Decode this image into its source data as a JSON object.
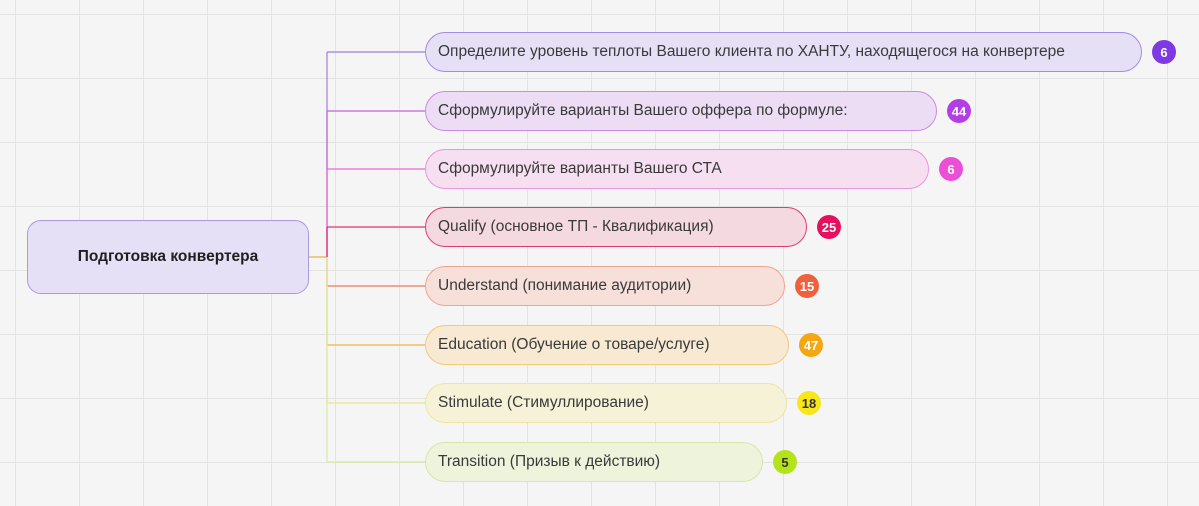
{
  "root": {
    "label": "Подготовка конвертера",
    "connector_color": "#e8b23a"
  },
  "branches": [
    {
      "label": "Определите уровень теплоты Вашего клиента по ХАНТУ, находящегося на конвертере",
      "count": "6",
      "line_color": "#9c7fe0",
      "fill": "#e6e0f6",
      "border": "#a48ae2",
      "badge_color": "#7e39e3",
      "badge_text_color": "#ffffff"
    },
    {
      "label": "Сформулируйте варианты Вашего оффера по формуле:",
      "count": "44",
      "line_color": "#c35fe0",
      "fill": "#ecdcf4",
      "border": "#c98ae3",
      "badge_color": "#b43ee6",
      "badge_text_color": "#ffffff"
    },
    {
      "label": "Сформулируйте варианты Вашего СТА",
      "count": "6",
      "line_color": "#e86bd6",
      "fill": "#f5dff0",
      "border": "#ea95dc",
      "badge_color": "#ea4fd6",
      "badge_text_color": "#ffffff"
    },
    {
      "label": "Qualify (основное ТП - Квалификация)",
      "count": "25",
      "line_color": "#e5306a",
      "fill": "#f5d9e0",
      "border": "#e03a6e",
      "badge_color": "#e5115e",
      "badge_text_color": "#ffffff"
    },
    {
      "label": "Understand (понимание аудитории)",
      "count": "15",
      "line_color": "#ee7a5c",
      "fill": "#f6e0d9",
      "border": "#f0a48f",
      "badge_color": "#f0603c",
      "badge_text_color": "#ffffff"
    },
    {
      "label": "Education (Обучение о товаре/услуге)",
      "count": "47",
      "line_color": "#f2b046",
      "fill": "#f7e9d2",
      "border": "#f3c97b",
      "badge_color": "#f3a712",
      "badge_text_color": "#ffffff"
    },
    {
      "label": "Stimulate (Стимуллирование)",
      "count": "18",
      "line_color": "#efe58a",
      "fill": "#f6f2d8",
      "border": "#efe49c",
      "badge_color": "#f8e61a",
      "badge_text_color": "#333333"
    },
    {
      "label": "Transition (Призыв к действию)",
      "count": "5",
      "line_color": "#d7eb9a",
      "fill": "#eef4dc",
      "border": "#d5e8a4",
      "badge_color": "#b5e31a",
      "badge_text_color": "#333333"
    }
  ]
}
